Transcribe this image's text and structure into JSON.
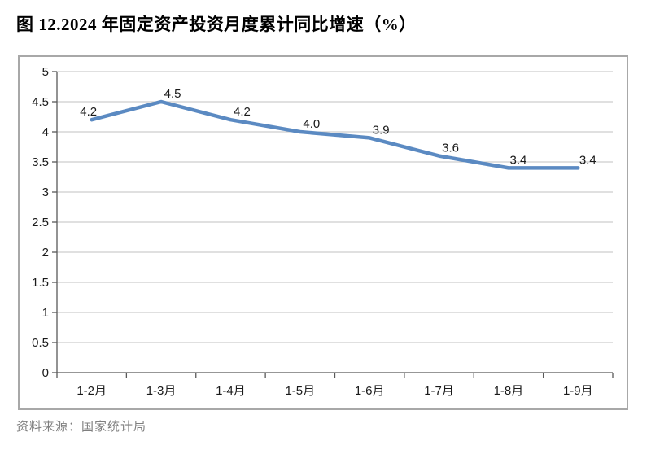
{
  "page": {
    "title": "图 12.2024 年固定资产投资月度累计同比增速（%）",
    "source_note": "资料来源：国家统计局"
  },
  "colors": {
    "line": "#5b8ac2",
    "grid": "#c0c0c0",
    "axis": "#595959",
    "frame_border": "#a8a8a8",
    "tick_label_text": "#1a1a1a",
    "data_label_text": "#1a1a1a",
    "title_text": "#000000",
    "source_text": "#7f7f7f",
    "background": "#ffffff"
  },
  "chart_data": {
    "type": "line",
    "title": "图 12.2024 年固定资产投资月度累计同比增速（%）",
    "categories": [
      "1-2月",
      "1-3月",
      "1-4月",
      "1-5月",
      "1-6月",
      "1-7月",
      "1-8月",
      "1-9月"
    ],
    "values": [
      4.2,
      4.5,
      4.2,
      4.0,
      3.9,
      3.6,
      3.4,
      3.4
    ],
    "data_labels": [
      "4.2",
      "4.5",
      "4.2",
      "4.0",
      "3.9",
      "3.6",
      "3.4",
      "3.4"
    ],
    "label_dx": [
      -4,
      14,
      14,
      14,
      14,
      14,
      12,
      12
    ],
    "xlabel": "",
    "ylabel": "",
    "ylim": [
      0,
      5
    ],
    "ytick_step": 0.5,
    "ytick_labels": [
      "0",
      "0.5",
      "1",
      "1.5",
      "2",
      "2.5",
      "3",
      "3.5",
      "4",
      "4.5",
      "5"
    ],
    "grid": true,
    "legend": "none"
  }
}
